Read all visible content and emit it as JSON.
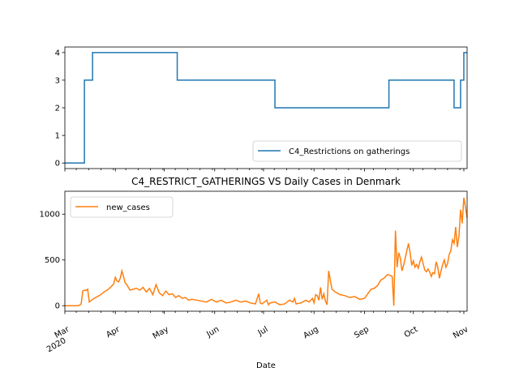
{
  "chart_data": [
    {
      "type": "line",
      "title": "",
      "xlabel": "",
      "ylabel": "",
      "ylim": [
        -0.2,
        4.2
      ],
      "xlim": [
        "2020-03-01",
        "2020-11-03"
      ],
      "yticks": [
        "0",
        "1",
        "2",
        "3",
        "4"
      ],
      "legend": {
        "placement": "lower-right"
      },
      "grid": false,
      "series": [
        {
          "name": "C4_Restrictions on gatherings",
          "color": "#1f77b4",
          "step": true,
          "x": [
            "2020-03-01",
            "2020-03-13",
            "2020-03-15",
            "2020-03-18",
            "2020-05-09",
            "2020-07-08",
            "2020-09-16",
            "2020-10-26",
            "2020-10-30",
            "2020-11-01",
            "2020-11-03"
          ],
          "y": [
            0,
            3,
            3,
            4,
            3,
            2,
            3,
            2,
            3,
            4,
            4
          ]
        }
      ]
    },
    {
      "type": "line",
      "title": "C4_RESTRICT_GATHERINGS VS Daily Cases in Denmark",
      "xlabel": "Date",
      "ylabel": "",
      "ylim": [
        -60,
        1250
      ],
      "xlim": [
        "2020-03-01",
        "2020-11-03"
      ],
      "yticks": [
        "0",
        "500",
        "1000"
      ],
      "xticks": [
        {
          "date": "2020-03-01",
          "label": "Mar",
          "sublabel": "2020"
        },
        {
          "date": "2020-04-01",
          "label": "Apr"
        },
        {
          "date": "2020-05-01",
          "label": "May"
        },
        {
          "date": "2020-06-01",
          "label": "Jun"
        },
        {
          "date": "2020-07-01",
          "label": "Jul"
        },
        {
          "date": "2020-08-01",
          "label": "Aug"
        },
        {
          "date": "2020-09-01",
          "label": "Sep"
        },
        {
          "date": "2020-10-01",
          "label": "Oct"
        },
        {
          "date": "2020-11-01",
          "label": "Nov"
        }
      ],
      "legend": {
        "placement": "upper-left"
      },
      "grid": false,
      "series": [
        {
          "name": "new_cases",
          "color": "#ff7f0e",
          "x": [
            "2020-03-01",
            "2020-03-08",
            "2020-03-10",
            "2020-03-11",
            "2020-03-12",
            "2020-03-13",
            "2020-03-14",
            "2020-03-15",
            "2020-03-16",
            "2020-03-18",
            "2020-03-20",
            "2020-03-23",
            "2020-03-25",
            "2020-03-27",
            "2020-03-29",
            "2020-03-31",
            "2020-04-01",
            "2020-04-02",
            "2020-04-03",
            "2020-04-04",
            "2020-04-05",
            "2020-04-06",
            "2020-04-07",
            "2020-04-08",
            "2020-04-09",
            "2020-04-10",
            "2020-04-12",
            "2020-04-14",
            "2020-04-16",
            "2020-04-18",
            "2020-04-20",
            "2020-04-22",
            "2020-04-24",
            "2020-04-26",
            "2020-04-28",
            "2020-04-30",
            "2020-05-02",
            "2020-05-04",
            "2020-05-06",
            "2020-05-08",
            "2020-05-10",
            "2020-05-12",
            "2020-05-14",
            "2020-05-16",
            "2020-05-18",
            "2020-05-21",
            "2020-05-24",
            "2020-05-27",
            "2020-05-30",
            "2020-06-02",
            "2020-06-05",
            "2020-06-08",
            "2020-06-11",
            "2020-06-14",
            "2020-06-17",
            "2020-06-20",
            "2020-06-23",
            "2020-06-26",
            "2020-06-28",
            "2020-06-29",
            "2020-06-30",
            "2020-07-03",
            "2020-07-04",
            "2020-07-05",
            "2020-07-08",
            "2020-07-11",
            "2020-07-14",
            "2020-07-17",
            "2020-07-19",
            "2020-07-20",
            "2020-07-21",
            "2020-07-24",
            "2020-07-27",
            "2020-07-29",
            "2020-07-31",
            "2020-08-01",
            "2020-08-02",
            "2020-08-03",
            "2020-08-04",
            "2020-08-05",
            "2020-08-06",
            "2020-08-07",
            "2020-08-08",
            "2020-08-09",
            "2020-08-10",
            "2020-08-12",
            "2020-08-14",
            "2020-08-17",
            "2020-08-20",
            "2020-08-23",
            "2020-08-26",
            "2020-08-29",
            "2020-09-01",
            "2020-09-03",
            "2020-09-05",
            "2020-09-07",
            "2020-09-09",
            "2020-09-11",
            "2020-09-13",
            "2020-09-15",
            "2020-09-17",
            "2020-09-18",
            "2020-09-19",
            "2020-09-20",
            "2020-09-21",
            "2020-09-22",
            "2020-09-23",
            "2020-09-24",
            "2020-09-25",
            "2020-09-26",
            "2020-09-27",
            "2020-09-28",
            "2020-09-29",
            "2020-09-30",
            "2020-10-01",
            "2020-10-02",
            "2020-10-03",
            "2020-10-04",
            "2020-10-05",
            "2020-10-06",
            "2020-10-07",
            "2020-10-08",
            "2020-10-09",
            "2020-10-10",
            "2020-10-11",
            "2020-10-12",
            "2020-10-13",
            "2020-10-14",
            "2020-10-15",
            "2020-10-16",
            "2020-10-17",
            "2020-10-18",
            "2020-10-19",
            "2020-10-20",
            "2020-10-21",
            "2020-10-22",
            "2020-10-23",
            "2020-10-24",
            "2020-10-25",
            "2020-10-26",
            "2020-10-27",
            "2020-10-28",
            "2020-10-29",
            "2020-10-30",
            "2020-10-31",
            "2020-11-01",
            "2020-11-02",
            "2020-11-03"
          ],
          "y": [
            0,
            0,
            5,
            20,
            160,
            170,
            165,
            180,
            40,
            70,
            90,
            120,
            150,
            170,
            200,
            240,
            310,
            270,
            260,
            300,
            380,
            320,
            250,
            230,
            200,
            170,
            180,
            190,
            170,
            200,
            150,
            190,
            120,
            230,
            140,
            110,
            160,
            120,
            130,
            90,
            110,
            80,
            90,
            60,
            70,
            60,
            50,
            40,
            70,
            40,
            60,
            30,
            40,
            60,
            40,
            50,
            30,
            20,
            130,
            30,
            20,
            60,
            10,
            30,
            40,
            10,
            20,
            60,
            40,
            80,
            20,
            30,
            60,
            40,
            80,
            30,
            120,
            110,
            60,
            200,
            70,
            130,
            50,
            10,
            380,
            180,
            150,
            120,
            110,
            90,
            100,
            70,
            80,
            130,
            180,
            190,
            220,
            280,
            300,
            340,
            330,
            320,
            0,
            820,
            420,
            580,
            520,
            380,
            440,
            520,
            600,
            680,
            580,
            440,
            490,
            420,
            450,
            410,
            480,
            530,
            460,
            390,
            370,
            400,
            370,
            320,
            360,
            350,
            480,
            420,
            300,
            380,
            450,
            500,
            420,
            460,
            560,
            600,
            720,
            680,
            860,
            640,
            760,
            1050,
            900,
            1180,
            1080,
            960
          ]
        }
      ]
    }
  ]
}
